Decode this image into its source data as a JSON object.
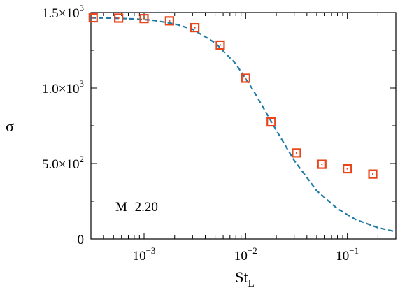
{
  "chart_data": {
    "type": "scatter",
    "xlabel_main": "St",
    "xlabel_sub": "L",
    "ylabel": "σ",
    "xscale": "log",
    "xlim": [
      0.0003,
      0.3
    ],
    "ylim": [
      0,
      1500
    ],
    "x_ticks": [
      {
        "value": 0.001,
        "base": "10",
        "exp": "−3"
      },
      {
        "value": 0.01,
        "base": "10",
        "exp": "−2"
      },
      {
        "value": 0.1,
        "base": "10",
        "exp": "−1"
      }
    ],
    "y_ticks": [
      {
        "value": 0,
        "mant": "0",
        "exp": ""
      },
      {
        "value": 500,
        "mant": "5.0×10",
        "exp": "2"
      },
      {
        "value": 1000,
        "mant": "1.0×10",
        "exp": "3"
      },
      {
        "value": 1500,
        "mant": "1.5×10",
        "exp": "3"
      }
    ],
    "annotation": "M=2.20",
    "series": [
      {
        "marker": "square",
        "color": "#e8461a",
        "x": [
          0.000316,
          0.000562,
          0.001,
          0.00178,
          0.00316,
          0.00562,
          0.01,
          0.0178,
          0.0316,
          0.0562,
          0.1,
          0.178
        ],
        "y": [
          1465,
          1463,
          1460,
          1445,
          1400,
          1285,
          1065,
          775,
          570,
          495,
          465,
          430
        ]
      },
      {
        "line": "dashed",
        "color": "#1f7aa6",
        "x": [
          0.0003,
          0.0005,
          0.0008,
          0.0012,
          0.002,
          0.003,
          0.005,
          0.008,
          0.012,
          0.02,
          0.03,
          0.05,
          0.08,
          0.12,
          0.2,
          0.3
        ],
        "y": [
          1465,
          1463,
          1458,
          1450,
          1425,
          1390,
          1300,
          1160,
          980,
          720,
          520,
          320,
          200,
          130,
          75,
          48
        ]
      }
    ]
  }
}
